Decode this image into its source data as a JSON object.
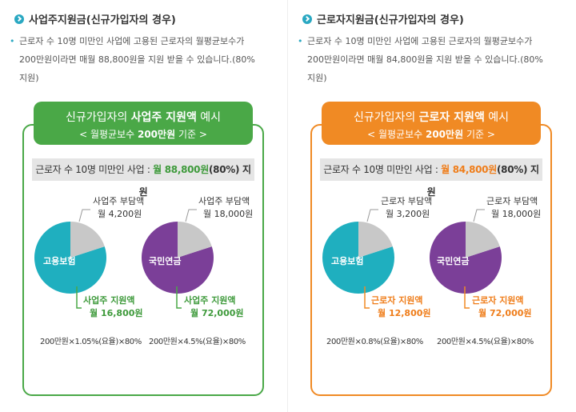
{
  "colors": {
    "employer_green": "#4aa847",
    "worker_orange": "#f08a24",
    "employer_text": "#3e9a3b",
    "worker_text": "#ef7d1a",
    "teal": "#1fafbf",
    "purple": "#7b3f98",
    "gray_slice": "#c8c8c8",
    "bullet_teal": "#2aa8c2"
  },
  "left": {
    "section_title": "사업주지원금(신규가입자의 경우)",
    "description_line1": "근로자 수 10명 미만인 사업에 고용된 근로자의 월평균보수가",
    "description_line2": "200만원이라면 매월 88,800원을 지원 받을 수 있습니다.(80%",
    "description_line3": "지원)",
    "card": {
      "head_prefix": "신규가입자의 ",
      "head_emph": "사업주 지원액",
      "head_suffix": " 예시",
      "sub_prefix": "< 월평균보수 ",
      "sub_emph": "200만원",
      "sub_suffix": " 기준 >",
      "bar_prefix": "근로자 수 10명 미만인 사업 : ",
      "bar_emph": "월 88,800원",
      "bar_suffix": "(80%) 지원",
      "pie1": {
        "name": "고용보험",
        "top_label_line1": "사업주 부담액",
        "top_label_line2": "월 4,200원",
        "bottom_label_line1": "사업주 지원액",
        "bottom_label_line2": "월 16,800원",
        "formula": "200만원×1.05%(요율)×80%",
        "share_fraction": 0.2
      },
      "pie2": {
        "name": "국민연금",
        "top_label_line1": "사업주 부담액",
        "top_label_line2": "월 18,000원",
        "bottom_label_line1": "사업주 지원액",
        "bottom_label_line2": "월 72,000원",
        "formula": "200만원×4.5%(요율)×80%",
        "share_fraction": 0.2
      }
    }
  },
  "right": {
    "section_title": "근로자지원금(신규가입자의 경우)",
    "description_line1": "근로자 수 10명 미만인 사업에 고용된 근로자의 월평균보수가",
    "description_line2": "200만원이라면 매월 84,800원을 지원 받을 수 있습니다.(80%",
    "description_line3": "지원)",
    "card": {
      "head_prefix": "신규가입자의 ",
      "head_emph": "근로자 지원액",
      "head_suffix": " 예시",
      "sub_prefix": "< 월평균보수 ",
      "sub_emph": "200만원",
      "sub_suffix": " 기준 >",
      "bar_prefix": "근로자 수 10명 미만인 사업 : ",
      "bar_emph": "월 84,800원",
      "bar_suffix": "(80%) 지원",
      "pie1": {
        "name": "고용보험",
        "top_label_line1": "근로자 부담액",
        "top_label_line2": "월 3,200원",
        "bottom_label_line1": "근로자 지원액",
        "bottom_label_line2": "월 12,800원",
        "formula": "200만원×0.8%(요율)×80%",
        "share_fraction": 0.2
      },
      "pie2": {
        "name": "국민연금",
        "top_label_line1": "근로자 부담액",
        "top_label_line2": "월 18,000원",
        "bottom_label_line1": "근로자 지원액",
        "bottom_label_line2": "월 72,000원",
        "formula": "200만원×4.5%(요율)×80%",
        "share_fraction": 0.2
      }
    }
  }
}
